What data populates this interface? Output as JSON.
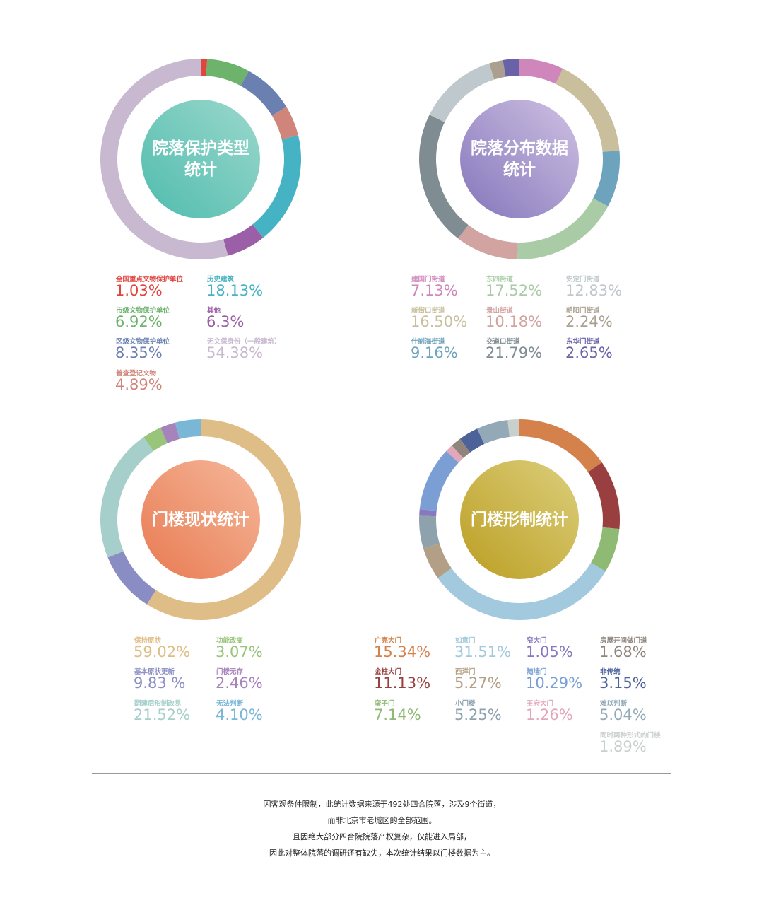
{
  "chart_data": [
    {
      "type": "pie",
      "title": "院落保护类型统计",
      "categories": [
        "全国重点文物保护单位",
        "市级文物保护单位",
        "区级文物保护单位",
        "普查登记文物",
        "历史建筑",
        "其他",
        "无文保身份（一般建筑）"
      ],
      "values": [
        1.03,
        6.92,
        8.35,
        4.89,
        18.13,
        6.3,
        54.38
      ],
      "value_labels": [
        "1.03%",
        "6.92%",
        "8.35%",
        "4.89%",
        "18.13%",
        "6.3%",
        "54.38%"
      ],
      "colors": [
        "#e0453f",
        "#6db36c",
        "#6a80b0",
        "#cf857a",
        "#45b3c3",
        "#9a5fa6",
        "#c8b8d0"
      ]
    },
    {
      "type": "pie",
      "title": "院落分布数据统计",
      "categories": [
        "建国门街道",
        "新街口街道",
        "什刹海街道",
        "东四街道",
        "景山街道",
        "交道口街道",
        "安定门街道",
        "朝阳门街道",
        "东华门街道"
      ],
      "values": [
        7.13,
        16.5,
        9.16,
        17.52,
        10.18,
        21.79,
        12.83,
        2.24,
        2.65
      ],
      "value_labels": [
        "7.13%",
        "16.50%",
        "9.16%",
        "17.52%",
        "10.18%",
        "21.79%",
        "12.83%",
        "2.24%",
        "2.65%"
      ],
      "colors": [
        "#cf86bb",
        "#c9bf9c",
        "#6ea3bd",
        "#a9cca6",
        "#d1a3a1",
        "#7f8d93",
        "#bfc8cc",
        "#ab9f90",
        "#6a62a8"
      ]
    },
    {
      "type": "pie",
      "title": "门楼现状统计",
      "categories": [
        "保持原状",
        "基本原状更新",
        "翻建后形制改易",
        "功能改变",
        "门楼无存",
        "无法判断"
      ],
      "values": [
        59.02,
        9.83,
        21.52,
        3.07,
        2.46,
        4.1
      ],
      "value_labels": [
        "59.02%",
        "9.83 %",
        "21.52%",
        "3.07%",
        "2.46%",
        "4.10%"
      ],
      "colors": [
        "#dfbd86",
        "#8a8cc4",
        "#a6cfcb",
        "#98c57a",
        "#a683bb",
        "#7ab7d6"
      ]
    },
    {
      "type": "pie",
      "title": "门楼形制统计",
      "categories": [
        "广亮大门",
        "金柱大门",
        "蛮子门",
        "如意门",
        "西洋门",
        "小门楼",
        "窄大门",
        "随墙门",
        "王府大门",
        "房屋开间做门道",
        "非传统",
        "难以判断",
        "同时两种形式的门楼"
      ],
      "values": [
        15.34,
        11.13,
        7.14,
        31.51,
        5.27,
        5.25,
        1.05,
        10.29,
        1.26,
        1.68,
        3.15,
        5.04,
        1.89
      ],
      "value_labels": [
        "15.34%",
        "11.13%",
        "7.14%",
        "31.51%",
        "5.27%",
        "5.25%",
        "1.05%",
        "10.29%",
        "1.26%",
        "1.68%",
        "3.15%",
        "5.04%",
        "1.89%"
      ],
      "colors": [
        "#d4814b",
        "#993f3f",
        "#8fba74",
        "#a2c9dd",
        "#b39f85",
        "#8ea2ad",
        "#8778bf",
        "#7b9fd4",
        "#e2a7b9",
        "#8f857b",
        "#4e629a",
        "#93a9b8",
        "#c9cfcb"
      ]
    }
  ],
  "footnote": {
    "lines": [
      "因客观条件限制，此统计数据来源于492处四合院落，涉及9个街道，",
      "而非北京市老城区的全部范围。",
      "且因绝大部分四合院院落产权复杂，仅能进入局部，",
      "因此对整体院落的调研还有缺失，本次统计结果以门楼数据为主。"
    ]
  }
}
